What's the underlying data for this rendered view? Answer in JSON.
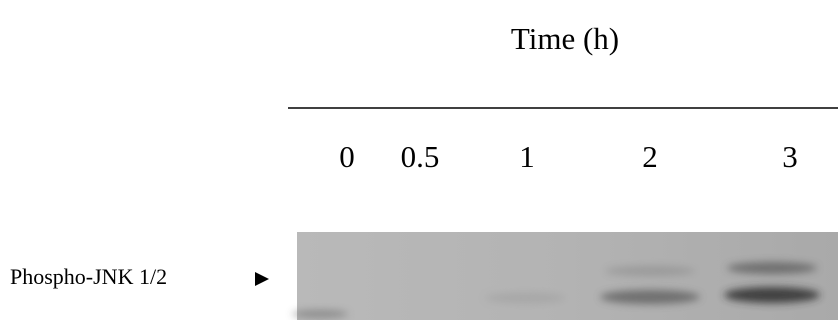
{
  "header": {
    "title": "Time (h)"
  },
  "lanes": [
    "0",
    "0.5",
    "1",
    "2",
    "3"
  ],
  "band_label": "Phospho-JNK 1/2"
}
